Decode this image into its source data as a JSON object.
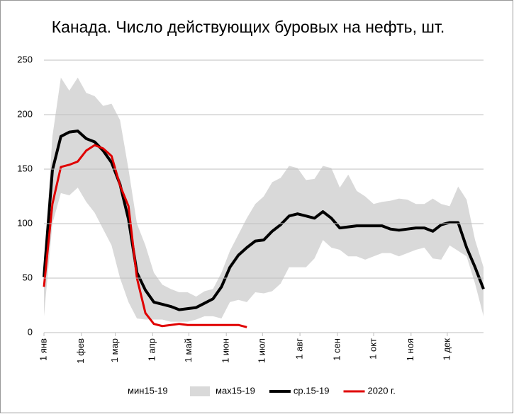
{
  "chart_data": {
    "type": "line",
    "title": "Канада. Число действующих буровых на нефть, шт.",
    "x": [
      0,
      7,
      14,
      21,
      28,
      35,
      42,
      49,
      56,
      63,
      70,
      77,
      84,
      91,
      98,
      105,
      112,
      119,
      126,
      133,
      140,
      147,
      154,
      161,
      168,
      175,
      182,
      189,
      196,
      203,
      210,
      217,
      224,
      231,
      238,
      245,
      252,
      259,
      266,
      273,
      280,
      287,
      294,
      301,
      308,
      315,
      322,
      329,
      336,
      343,
      350,
      357,
      364
    ],
    "xlim": [
      0,
      364
    ],
    "xticks": [
      {
        "value": 0,
        "label": "1 янв"
      },
      {
        "value": 31,
        "label": "1 фев"
      },
      {
        "value": 59,
        "label": "1 мар"
      },
      {
        "value": 90,
        "label": "1 апр"
      },
      {
        "value": 120,
        "label": "1 май"
      },
      {
        "value": 151,
        "label": "1 июн"
      },
      {
        "value": 181,
        "label": "1 июл"
      },
      {
        "value": 212,
        "label": "1 авг"
      },
      {
        "value": 243,
        "label": "1 сен"
      },
      {
        "value": 273,
        "label": "1 окт"
      },
      {
        "value": 304,
        "label": "1 ноя"
      },
      {
        "value": 334,
        "label": "1 дек"
      }
    ],
    "ylim": [
      0,
      250
    ],
    "yticks": [
      0,
      50,
      100,
      150,
      200,
      250
    ],
    "grid": true,
    "legend": "bottom",
    "series": [
      {
        "name": "мин15-19",
        "color": "#ffffff",
        "kind": "area",
        "values": [
          15,
          100,
          128,
          126,
          133,
          120,
          110,
          95,
          80,
          50,
          28,
          13,
          12,
          12,
          12,
          10,
          10,
          10,
          12,
          15,
          15,
          13,
          28,
          30,
          28,
          37,
          36,
          38,
          45,
          60,
          60,
          60,
          68,
          85,
          78,
          76,
          70,
          70,
          67,
          70,
          73,
          73,
          70,
          73,
          76,
          78,
          68,
          67,
          80,
          75,
          70,
          45,
          15
        ]
      },
      {
        "name": "мах15-19",
        "color": "#d9d9d9",
        "kind": "area",
        "values": [
          60,
          180,
          234,
          222,
          234,
          220,
          217,
          208,
          210,
          195,
          150,
          100,
          80,
          55,
          44,
          40,
          37,
          37,
          33,
          38,
          40,
          55,
          75,
          90,
          105,
          118,
          125,
          138,
          142,
          153,
          151,
          140,
          141,
          153,
          151,
          133,
          145,
          130,
          125,
          118,
          120,
          121,
          123,
          122,
          118,
          118,
          123,
          118,
          116,
          134,
          122,
          85,
          60
        ]
      },
      {
        "name": "ср.15-19",
        "color": "#000000",
        "kind": "line",
        "values": [
          51,
          149,
          180,
          184,
          185,
          178,
          175,
          167,
          156,
          136,
          104,
          55,
          39,
          28,
          26,
          24,
          21,
          22,
          23,
          27,
          31,
          42,
          60,
          71,
          78,
          84,
          85,
          93,
          99,
          107,
          109,
          107,
          105,
          111,
          105,
          96,
          97,
          98,
          98,
          98,
          98,
          95,
          94,
          95,
          96,
          96,
          93,
          99,
          101,
          101,
          78,
          60,
          40
        ]
      },
      {
        "name": "2020 г.",
        "color": "#e00000",
        "kind": "line",
        "values": [
          42,
          118,
          152,
          154,
          157,
          167,
          172,
          169,
          162,
          135,
          116,
          50,
          18,
          8,
          6,
          7,
          8,
          7,
          7,
          7,
          7,
          7,
          7,
          7,
          5,
          null,
          null,
          null,
          null,
          null,
          null,
          null,
          null,
          null,
          null,
          null,
          null,
          null,
          null,
          null,
          null,
          null,
          null,
          null,
          null,
          null,
          null,
          null,
          null,
          null,
          null,
          null,
          null
        ]
      }
    ]
  }
}
